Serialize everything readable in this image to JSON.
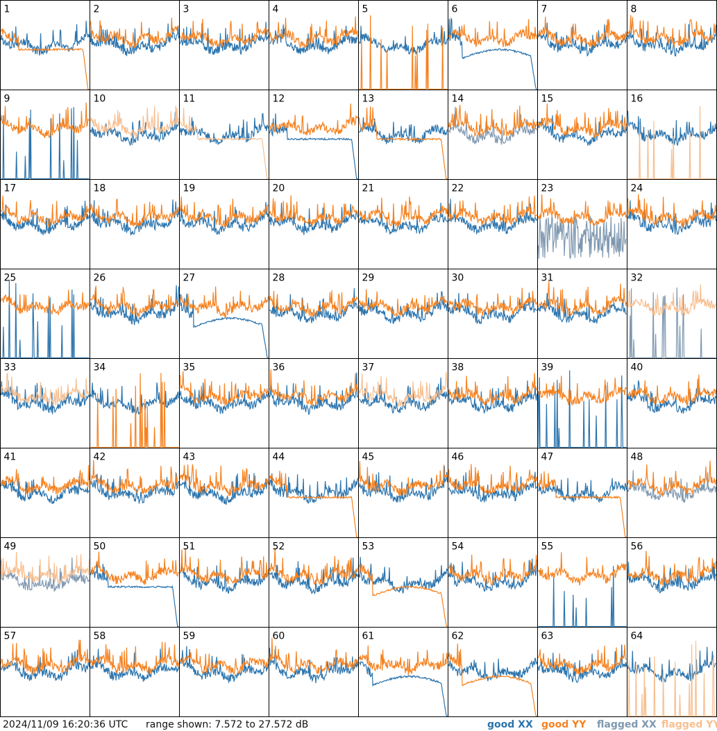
{
  "footer": {
    "timestamp": "2024/11/09 16:20:36 UTC",
    "range_text": "range shown: 7.572 to 27.572 dB"
  },
  "legend": [
    {
      "label": "good XX",
      "color": "#2b74ad"
    },
    {
      "label": "good YY",
      "color": "#f58220"
    },
    {
      "label": "flagged XX",
      "color": "#7f98b0"
    },
    {
      "label": "flagged YY",
      "color": "#f7bf90"
    }
  ],
  "chart_data": {
    "type": "line",
    "layout": "8x8 small multiples",
    "ylim_db": [
      7.572,
      27.572
    ],
    "series_names": [
      "good XX",
      "good YY",
      "flagged XX",
      "flagged YY"
    ],
    "panels": [
      {
        "id": "1",
        "xx": "good",
        "yy": "good",
        "yy_shape": "drop"
      },
      {
        "id": "2",
        "xx": "good",
        "yy": "good"
      },
      {
        "id": "3",
        "xx": "good",
        "yy": "good"
      },
      {
        "id": "4",
        "xx": "good",
        "yy": "good"
      },
      {
        "id": "5",
        "xx": "good",
        "yy": "good",
        "yy_shape": "spikes"
      },
      {
        "id": "6",
        "xx": "good",
        "yy": "good",
        "xx_shape": "dip"
      },
      {
        "id": "7",
        "xx": "good",
        "yy": "good"
      },
      {
        "id": "8",
        "xx": "good",
        "yy": "good"
      },
      {
        "id": "9",
        "xx": "good",
        "yy": "good",
        "xx_shape": "spikes"
      },
      {
        "id": "10",
        "xx": "good",
        "yy": "flagged"
      },
      {
        "id": "11",
        "xx": "good",
        "yy": "flagged",
        "yy_shape": "drop"
      },
      {
        "id": "12",
        "xx": "good",
        "yy": "good",
        "xx_shape": "drop"
      },
      {
        "id": "13",
        "xx": "good",
        "yy": "good",
        "yy_shape": "drop"
      },
      {
        "id": "14",
        "xx": "flagged",
        "yy": "good"
      },
      {
        "id": "15",
        "xx": "good",
        "yy": "good"
      },
      {
        "id": "16",
        "xx": "good",
        "yy": "flagged",
        "yy_shape": "spikes"
      },
      {
        "id": "17",
        "xx": "good",
        "yy": "good"
      },
      {
        "id": "18",
        "xx": "good",
        "yy": "good"
      },
      {
        "id": "19",
        "xx": "good",
        "yy": "good"
      },
      {
        "id": "20",
        "xx": "good",
        "yy": "good"
      },
      {
        "id": "21",
        "xx": "good",
        "yy": "good"
      },
      {
        "id": "22",
        "xx": "good",
        "yy": "good"
      },
      {
        "id": "23",
        "xx": "flagged",
        "yy": "good",
        "xx_shape": "noisy"
      },
      {
        "id": "24",
        "xx": "good",
        "yy": "good"
      },
      {
        "id": "25",
        "xx": "good",
        "yy": "good",
        "xx_shape": "spikes"
      },
      {
        "id": "26",
        "xx": "good",
        "yy": "good"
      },
      {
        "id": "27",
        "xx": "good",
        "yy": "good",
        "xx_shape": "dip"
      },
      {
        "id": "28",
        "xx": "good",
        "yy": "good"
      },
      {
        "id": "29",
        "xx": "good",
        "yy": "good"
      },
      {
        "id": "30",
        "xx": "good",
        "yy": "good"
      },
      {
        "id": "31",
        "xx": "good",
        "yy": "good"
      },
      {
        "id": "32",
        "xx": "flagged",
        "yy": "flagged",
        "xx_shape": "spikes"
      },
      {
        "id": "33",
        "xx": "good",
        "yy": "flagged"
      },
      {
        "id": "34",
        "xx": "good",
        "yy": "good",
        "yy_shape": "spikes"
      },
      {
        "id": "35",
        "xx": "good",
        "yy": "good"
      },
      {
        "id": "36",
        "xx": "good",
        "yy": "good"
      },
      {
        "id": "37",
        "xx": "good",
        "yy": "flagged"
      },
      {
        "id": "38",
        "xx": "good",
        "yy": "good"
      },
      {
        "id": "39",
        "xx": "good",
        "yy": "good",
        "xx_shape": "spikes"
      },
      {
        "id": "40",
        "xx": "good",
        "yy": "good"
      },
      {
        "id": "41",
        "xx": "good",
        "yy": "good"
      },
      {
        "id": "42",
        "xx": "good",
        "yy": "good"
      },
      {
        "id": "43",
        "xx": "good",
        "yy": "good"
      },
      {
        "id": "44",
        "xx": "good",
        "yy": "good",
        "yy_shape": "drop"
      },
      {
        "id": "45",
        "xx": "good",
        "yy": "good"
      },
      {
        "id": "46",
        "xx": "good",
        "yy": "good"
      },
      {
        "id": "47",
        "xx": "good",
        "yy": "good",
        "yy_shape": "drop"
      },
      {
        "id": "48",
        "xx": "flagged",
        "yy": "good"
      },
      {
        "id": "49",
        "xx": "flagged",
        "yy": "flagged"
      },
      {
        "id": "50",
        "xx": "good",
        "yy": "good",
        "xx_shape": "drop"
      },
      {
        "id": "51",
        "xx": "good",
        "yy": "good"
      },
      {
        "id": "52",
        "xx": "good",
        "yy": "good"
      },
      {
        "id": "53",
        "xx": "good",
        "yy": "good",
        "yy_shape": "dip"
      },
      {
        "id": "54",
        "xx": "good",
        "yy": "good"
      },
      {
        "id": "55",
        "xx": "good",
        "yy": "good",
        "xx_shape": "spikes"
      },
      {
        "id": "56",
        "xx": "good",
        "yy": "good"
      },
      {
        "id": "57",
        "xx": "good",
        "yy": "good"
      },
      {
        "id": "58",
        "xx": "good",
        "yy": "good"
      },
      {
        "id": "59",
        "xx": "good",
        "yy": "good"
      },
      {
        "id": "60",
        "xx": "good",
        "yy": "good"
      },
      {
        "id": "61",
        "xx": "good",
        "yy": "good",
        "xx_shape": "dip"
      },
      {
        "id": "62",
        "xx": "good",
        "yy": "good",
        "yy_shape": "dip"
      },
      {
        "id": "63",
        "xx": "good",
        "yy": "good"
      },
      {
        "id": "64",
        "xx": "good",
        "yy": "flagged",
        "yy_shape": "spikes"
      }
    ]
  }
}
